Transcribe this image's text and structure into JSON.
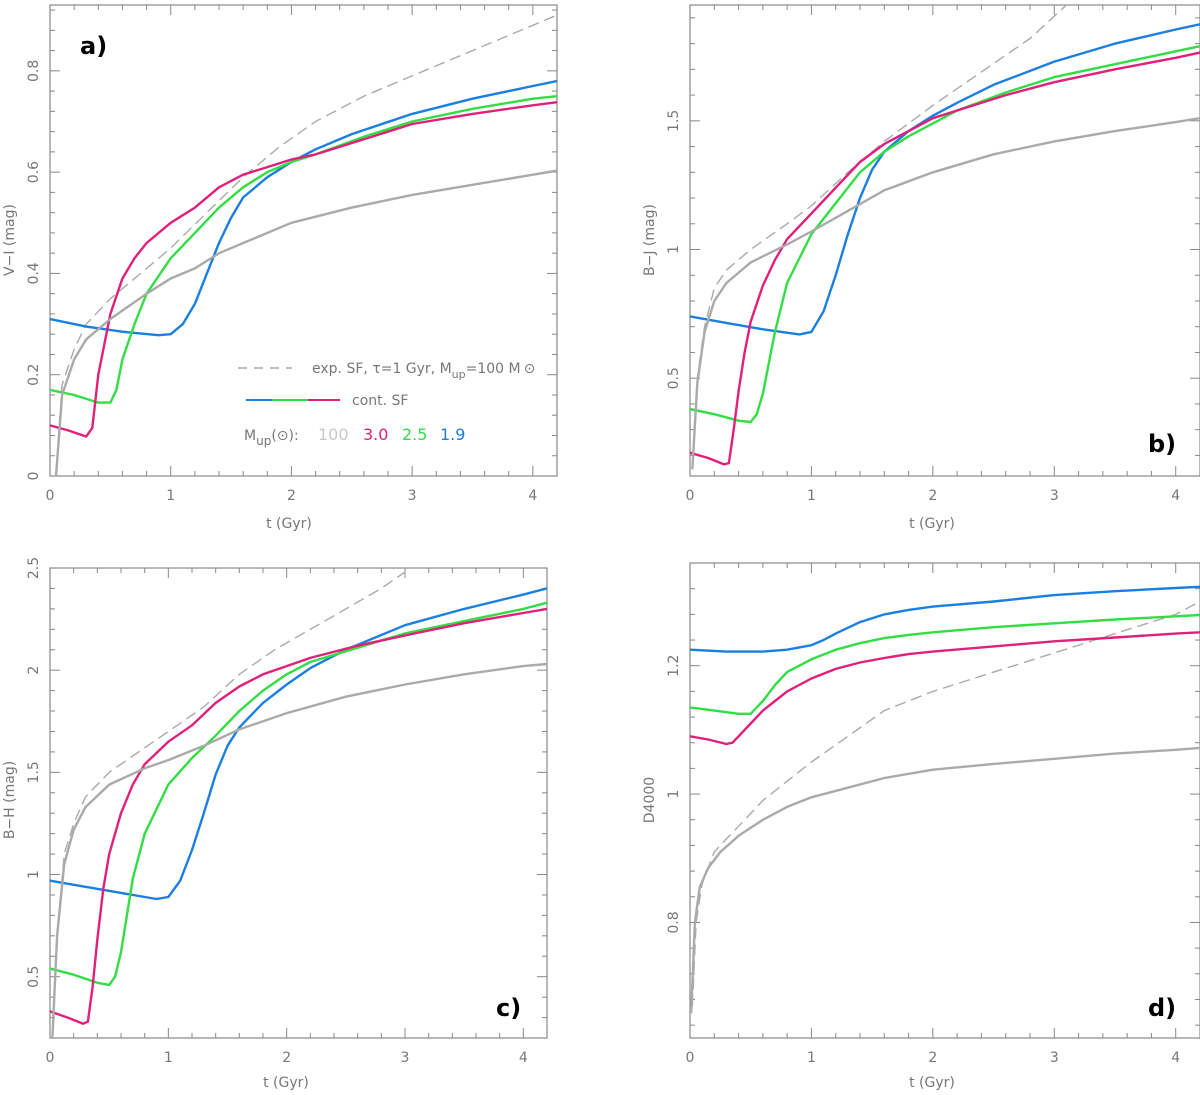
{
  "chart_data": [
    {
      "type": "line",
      "panel_label": "a)",
      "xlabel": "t (Gyr)",
      "ylabel": "V−I (mag)",
      "xlim": [
        0,
        4.2
      ],
      "ylim": [
        0,
        0.93
      ],
      "xticks": [
        0,
        1,
        2,
        3,
        4
      ],
      "yticks": [
        0,
        0.2,
        0.4,
        0.6,
        0.8
      ],
      "ytick_labels": [
        "0",
        "0.2",
        "0.4",
        "0.6",
        "0.8"
      ],
      "series": [
        {
          "color": "#aaaaaa",
          "dash": true,
          "x": [
            0.05,
            0.1,
            0.2,
            0.3,
            0.5,
            0.8,
            1.0,
            1.3,
            1.6,
            1.9,
            2.2,
            2.6,
            3.0,
            3.5,
            4.0,
            4.2
          ],
          "y": [
            0.0,
            0.18,
            0.25,
            0.3,
            0.35,
            0.41,
            0.45,
            0.52,
            0.59,
            0.65,
            0.7,
            0.75,
            0.79,
            0.84,
            0.89,
            0.91
          ]
        },
        {
          "color": "#1a7fe0",
          "x": [
            0.0,
            0.3,
            0.6,
            0.9,
            1.0,
            1.1,
            1.2,
            1.3,
            1.4,
            1.5,
            1.6,
            1.8,
            2.0,
            2.2,
            2.5,
            3.0,
            3.5,
            4.0,
            4.2
          ],
          "y": [
            0.31,
            0.295,
            0.285,
            0.278,
            0.28,
            0.3,
            0.34,
            0.4,
            0.46,
            0.51,
            0.55,
            0.59,
            0.62,
            0.645,
            0.675,
            0.715,
            0.745,
            0.77,
            0.78
          ]
        },
        {
          "color": "#33dd44",
          "x": [
            0.0,
            0.2,
            0.4,
            0.5,
            0.55,
            0.6,
            0.7,
            0.8,
            1.0,
            1.2,
            1.4,
            1.6,
            1.8,
            2.0,
            2.2,
            2.6,
            3.0,
            3.5,
            4.0,
            4.2
          ],
          "y": [
            0.17,
            0.16,
            0.145,
            0.145,
            0.17,
            0.23,
            0.3,
            0.36,
            0.43,
            0.48,
            0.53,
            0.57,
            0.6,
            0.62,
            0.635,
            0.67,
            0.7,
            0.725,
            0.745,
            0.75
          ]
        },
        {
          "color": "#e0207a",
          "x": [
            0.0,
            0.15,
            0.3,
            0.35,
            0.4,
            0.5,
            0.6,
            0.7,
            0.8,
            1.0,
            1.2,
            1.4,
            1.6,
            1.8,
            2.0,
            2.2,
            2.6,
            3.0,
            3.5,
            4.0,
            4.2
          ],
          "y": [
            0.1,
            0.09,
            0.078,
            0.095,
            0.2,
            0.32,
            0.39,
            0.43,
            0.46,
            0.5,
            0.53,
            0.57,
            0.595,
            0.61,
            0.625,
            0.635,
            0.665,
            0.695,
            0.715,
            0.732,
            0.738
          ]
        },
        {
          "color": "#aaaaaa",
          "x": [
            0.05,
            0.1,
            0.2,
            0.3,
            0.5,
            0.8,
            1.0,
            1.2,
            1.4,
            1.7,
            2.0,
            2.5,
            3.0,
            3.5,
            4.0,
            4.2
          ],
          "y": [
            0.0,
            0.16,
            0.23,
            0.27,
            0.31,
            0.36,
            0.39,
            0.41,
            0.44,
            0.47,
            0.5,
            0.53,
            0.555,
            0.575,
            0.595,
            0.603
          ]
        }
      ]
    },
    {
      "type": "line",
      "panel_label": "b)",
      "xlabel": "t (Gyr)",
      "ylabel": "B−J (mag)",
      "xlim": [
        0,
        4.2
      ],
      "ylim": [
        0.12,
        1.95
      ],
      "xticks": [
        0,
        1,
        2,
        3,
        4
      ],
      "yticks": [
        0.5,
        1.0,
        1.5
      ],
      "ytick_labels": [
        "0.5",
        "1",
        "1.5"
      ],
      "series": [
        {
          "color": "#aaaaaa",
          "dash": true,
          "x": [
            0.02,
            0.06,
            0.12,
            0.2,
            0.3,
            0.5,
            0.8,
            1.0,
            1.3,
            1.6,
            2.0,
            2.4,
            2.8,
            3.1
          ],
          "y": [
            0.15,
            0.5,
            0.7,
            0.85,
            0.92,
            1.0,
            1.1,
            1.17,
            1.3,
            1.42,
            1.56,
            1.69,
            1.82,
            1.95
          ]
        },
        {
          "color": "#1a7fe0",
          "x": [
            0.0,
            0.3,
            0.6,
            0.9,
            1.0,
            1.1,
            1.2,
            1.3,
            1.4,
            1.5,
            1.6,
            1.8,
            2.0,
            2.2,
            2.5,
            3.0,
            3.5,
            4.0,
            4.2
          ],
          "y": [
            0.74,
            0.715,
            0.69,
            0.67,
            0.68,
            0.76,
            0.9,
            1.06,
            1.2,
            1.31,
            1.38,
            1.46,
            1.52,
            1.57,
            1.64,
            1.73,
            1.8,
            1.855,
            1.875
          ]
        },
        {
          "color": "#33dd44",
          "x": [
            0.0,
            0.2,
            0.4,
            0.5,
            0.55,
            0.6,
            0.65,
            0.7,
            0.8,
            1.0,
            1.2,
            1.4,
            1.6,
            1.8,
            2.0,
            2.2,
            2.6,
            3.0,
            3.5,
            4.0,
            4.2
          ],
          "y": [
            0.38,
            0.36,
            0.335,
            0.33,
            0.36,
            0.44,
            0.56,
            0.68,
            0.87,
            1.06,
            1.18,
            1.3,
            1.38,
            1.44,
            1.49,
            1.54,
            1.61,
            1.67,
            1.72,
            1.77,
            1.79
          ]
        },
        {
          "color": "#e0207a",
          "x": [
            0.0,
            0.15,
            0.28,
            0.32,
            0.36,
            0.4,
            0.45,
            0.5,
            0.6,
            0.7,
            0.8,
            1.0,
            1.2,
            1.4,
            1.6,
            1.8,
            2.0,
            2.2,
            2.6,
            3.0,
            3.5,
            4.0,
            4.2
          ],
          "y": [
            0.21,
            0.19,
            0.165,
            0.17,
            0.3,
            0.45,
            0.6,
            0.72,
            0.86,
            0.96,
            1.04,
            1.14,
            1.24,
            1.34,
            1.41,
            1.46,
            1.51,
            1.54,
            1.6,
            1.65,
            1.7,
            1.745,
            1.765
          ]
        },
        {
          "color": "#aaaaaa",
          "x": [
            0.02,
            0.06,
            0.12,
            0.2,
            0.3,
            0.5,
            0.8,
            1.0,
            1.3,
            1.6,
            2.0,
            2.5,
            3.0,
            3.5,
            4.0,
            4.2
          ],
          "y": [
            0.15,
            0.48,
            0.68,
            0.8,
            0.87,
            0.95,
            1.02,
            1.07,
            1.15,
            1.23,
            1.3,
            1.37,
            1.42,
            1.46,
            1.495,
            1.51
          ]
        }
      ]
    },
    {
      "type": "line",
      "panel_label": "c)",
      "xlabel": "t (Gyr)",
      "ylabel": "B−H (mag)",
      "xlim": [
        0,
        4.2
      ],
      "ylim": [
        0.2,
        2.5
      ],
      "xticks": [
        0,
        1,
        2,
        3,
        4
      ],
      "yticks": [
        0.5,
        1.0,
        1.5,
        2.0,
        2.5
      ],
      "ytick_labels": [
        "0.5",
        "1",
        "1.5",
        "2",
        "2.5"
      ],
      "series": [
        {
          "color": "#aaaaaa",
          "dash": true,
          "x": [
            0.02,
            0.06,
            0.12,
            0.2,
            0.3,
            0.5,
            0.8,
            1.0,
            1.3,
            1.6,
            1.9,
            2.2,
            2.5,
            2.8,
            3.0
          ],
          "y": [
            0.2,
            0.7,
            1.1,
            1.25,
            1.38,
            1.5,
            1.62,
            1.7,
            1.82,
            1.98,
            2.1,
            2.2,
            2.3,
            2.4,
            2.48
          ]
        },
        {
          "color": "#1a7fe0",
          "x": [
            0.0,
            0.3,
            0.6,
            0.9,
            1.0,
            1.1,
            1.2,
            1.3,
            1.4,
            1.5,
            1.6,
            1.8,
            2.0,
            2.2,
            2.5,
            3.0,
            3.5,
            4.0,
            4.2
          ],
          "y": [
            0.97,
            0.94,
            0.91,
            0.88,
            0.89,
            0.97,
            1.12,
            1.3,
            1.49,
            1.63,
            1.72,
            1.84,
            1.93,
            2.01,
            2.1,
            2.22,
            2.3,
            2.37,
            2.4
          ]
        },
        {
          "color": "#33dd44",
          "x": [
            0.0,
            0.2,
            0.4,
            0.5,
            0.55,
            0.6,
            0.65,
            0.7,
            0.8,
            1.0,
            1.2,
            1.4,
            1.6,
            1.8,
            2.0,
            2.2,
            2.6,
            3.0,
            3.5,
            4.0,
            4.2
          ],
          "y": [
            0.54,
            0.51,
            0.47,
            0.46,
            0.5,
            0.62,
            0.8,
            0.98,
            1.2,
            1.44,
            1.57,
            1.68,
            1.8,
            1.9,
            1.98,
            2.04,
            2.11,
            2.18,
            2.24,
            2.3,
            2.33
          ]
        },
        {
          "color": "#e0207a",
          "x": [
            0.0,
            0.15,
            0.28,
            0.32,
            0.36,
            0.4,
            0.45,
            0.5,
            0.6,
            0.7,
            0.8,
            1.0,
            1.2,
            1.4,
            1.6,
            1.8,
            2.0,
            2.2,
            2.6,
            3.0,
            3.5,
            4.0,
            4.2
          ],
          "y": [
            0.33,
            0.3,
            0.27,
            0.28,
            0.45,
            0.68,
            0.93,
            1.1,
            1.3,
            1.44,
            1.54,
            1.65,
            1.73,
            1.84,
            1.92,
            1.98,
            2.02,
            2.06,
            2.12,
            2.17,
            2.23,
            2.28,
            2.3
          ]
        },
        {
          "color": "#aaaaaa",
          "x": [
            0.02,
            0.06,
            0.12,
            0.2,
            0.3,
            0.5,
            0.8,
            1.0,
            1.3,
            1.6,
            2.0,
            2.5,
            3.0,
            3.5,
            4.0,
            4.2
          ],
          "y": [
            0.2,
            0.7,
            1.05,
            1.22,
            1.33,
            1.44,
            1.52,
            1.56,
            1.63,
            1.71,
            1.79,
            1.87,
            1.93,
            1.98,
            2.02,
            2.03
          ]
        }
      ]
    },
    {
      "type": "line",
      "panel_label": "d)",
      "xlabel": "t (Gyr)",
      "ylabel": "D4000",
      "xlim": [
        0,
        4.2
      ],
      "ylim": [
        0.62,
        1.36
      ],
      "xticks": [
        0,
        1,
        2,
        3,
        4
      ],
      "yticks": [
        0.8,
        1.0,
        1.2
      ],
      "ytick_labels": [
        "0.8",
        "1",
        "1.2"
      ],
      "series": [
        {
          "color": "#aaaaaa",
          "dash": true,
          "x": [
            0.02,
            0.05,
            0.1,
            0.2,
            0.3,
            0.4,
            0.6,
            0.8,
            1.0,
            1.3,
            1.6,
            2.0,
            2.5,
            3.0,
            3.5,
            4.0,
            4.2
          ],
          "y": [
            0.67,
            0.8,
            0.86,
            0.91,
            0.93,
            0.95,
            0.99,
            1.02,
            1.05,
            1.09,
            1.13,
            1.16,
            1.19,
            1.22,
            1.25,
            1.28,
            1.3
          ]
        },
        {
          "color": "#1a7fe0",
          "x": [
            0.0,
            0.3,
            0.6,
            0.8,
            1.0,
            1.1,
            1.2,
            1.4,
            1.6,
            1.8,
            2.0,
            2.5,
            3.0,
            3.5,
            4.0,
            4.2
          ],
          "y": [
            1.225,
            1.222,
            1.222,
            1.225,
            1.232,
            1.24,
            1.25,
            1.268,
            1.28,
            1.287,
            1.292,
            1.3,
            1.31,
            1.316,
            1.321,
            1.323
          ]
        },
        {
          "color": "#33dd44",
          "x": [
            0.0,
            0.2,
            0.4,
            0.5,
            0.6,
            0.7,
            0.8,
            1.0,
            1.2,
            1.4,
            1.6,
            1.8,
            2.0,
            2.5,
            3.0,
            3.5,
            4.0,
            4.2
          ],
          "y": [
            1.135,
            1.13,
            1.125,
            1.125,
            1.145,
            1.17,
            1.19,
            1.21,
            1.225,
            1.235,
            1.243,
            1.248,
            1.252,
            1.26,
            1.266,
            1.272,
            1.277,
            1.279
          ]
        },
        {
          "color": "#e0207a",
          "x": [
            0.0,
            0.15,
            0.3,
            0.35,
            0.4,
            0.5,
            0.6,
            0.7,
            0.8,
            1.0,
            1.2,
            1.4,
            1.6,
            1.8,
            2.0,
            2.5,
            3.0,
            3.5,
            4.0,
            4.2
          ],
          "y": [
            1.09,
            1.085,
            1.078,
            1.08,
            1.09,
            1.11,
            1.13,
            1.145,
            1.16,
            1.18,
            1.195,
            1.205,
            1.212,
            1.218,
            1.222,
            1.23,
            1.238,
            1.244,
            1.25,
            1.252
          ]
        },
        {
          "color": "#aaaaaa",
          "x": [
            0.01,
            0.04,
            0.08,
            0.15,
            0.25,
            0.4,
            0.6,
            0.8,
            1.0,
            1.3,
            1.6,
            2.0,
            2.5,
            3.0,
            3.5,
            4.0,
            4.2
          ],
          "y": [
            0.66,
            0.8,
            0.855,
            0.885,
            0.91,
            0.935,
            0.96,
            0.98,
            0.995,
            1.01,
            1.025,
            1.038,
            1.047,
            1.055,
            1.063,
            1.069,
            1.072
          ]
        }
      ]
    }
  ],
  "legend": {
    "dashed_label": "exp. SF, τ=1 Gyr, M",
    "dashed_sub": "up",
    "dashed_tail": "=100 M",
    "dashed_sun": "⊙",
    "cont_label": "cont. SF",
    "mup_main": "M",
    "mup_sub": "up",
    "mup_tail": "(⊙):",
    "mup_items": [
      {
        "text": "100",
        "color": "#c8c8c8"
      },
      {
        "text": "3.0",
        "color": "#e0207a"
      },
      {
        "text": "2.5",
        "color": "#33dd44"
      },
      {
        "text": "1.9",
        "color": "#1a7fe0"
      }
    ]
  }
}
